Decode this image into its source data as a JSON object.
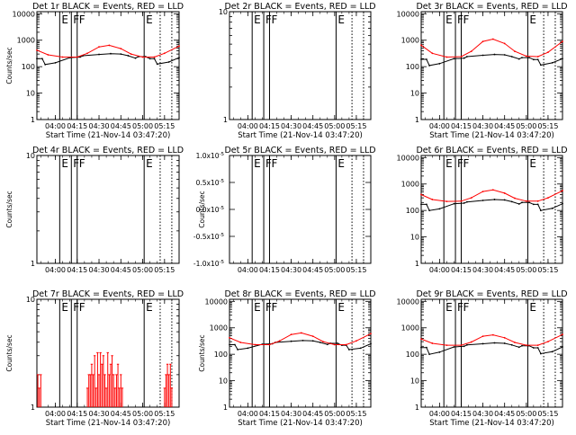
{
  "chart_data": [
    {
      "type": "line",
      "title": "Det 1r BLACK = Events, RED = LLD",
      "xlabel": "Start Time (21-Nov-14 03:47:20)",
      "ylabel": "Counts/sec",
      "xlim": [
        "03:47:20",
        "05:25:00"
      ],
      "x_tick_labels": [
        "04:00",
        "04:15",
        "04:30",
        "04:45",
        "05:00",
        "05:15"
      ],
      "ylim": [
        1,
        12000
      ],
      "yscale": "log",
      "y_tick_labels": [
        "1",
        "10",
        "100",
        "1000",
        "10000"
      ],
      "markers": [
        {
          "time": "04:03",
          "label": "E"
        },
        {
          "time": "04:11",
          "label": "F"
        },
        {
          "time": "04:15",
          "label": "F"
        },
        {
          "time": "05:01",
          "label": "E"
        }
      ],
      "series": [
        {
          "color": "#000000",
          "x": [
            "03:47:20",
            "03:51",
            "03:53",
            "04:00",
            "04:10",
            "04:17",
            "04:19",
            "04:30",
            "04:38",
            "04:45",
            "04:50",
            "04:55",
            "04:57",
            "05:02",
            "05:05",
            "05:08",
            "05:10",
            "05:18",
            "05:25"
          ],
          "values": [
            200,
            200,
            120,
            140,
            220,
            230,
            260,
            290,
            310,
            300,
            260,
            210,
            240,
            240,
            200,
            200,
            125,
            150,
            220
          ]
        },
        {
          "color": "#ff0000",
          "x": [
            "03:47:20",
            "03:55",
            "04:05",
            "04:15",
            "04:22",
            "04:30",
            "04:37",
            "04:45",
            "04:52",
            "05:00",
            "05:08",
            "05:15",
            "05:25"
          ],
          "values": [
            420,
            280,
            230,
            230,
            320,
            560,
            640,
            480,
            300,
            230,
            230,
            320,
            600
          ]
        }
      ]
    },
    {
      "type": "line",
      "title": "Det 2r BLACK = Events, RED = LLD",
      "xlabel": "Start Time (21-Nov-14 03:47:20)",
      "ylabel": "",
      "xlim": [
        "03:47:20",
        "05:25:00"
      ],
      "x_tick_labels": [
        "04:00",
        "04:15",
        "04:30",
        "04:45",
        "05:00",
        "05:15"
      ],
      "ylim": [
        1,
        10
      ],
      "yscale": "log",
      "y_tick_labels": [
        "1",
        "10"
      ],
      "markers": [
        {
          "time": "04:03",
          "label": "E"
        },
        {
          "time": "04:11",
          "label": "F"
        },
        {
          "time": "04:15",
          "label": "F"
        },
        {
          "time": "05:01",
          "label": "E"
        }
      ],
      "series": []
    },
    {
      "type": "line",
      "title": "Det 3r BLACK = Events, RED = LLD",
      "xlabel": "Start Time (21-Nov-14 03:47:20)",
      "ylabel": "",
      "xlim": [
        "03:47:20",
        "05:25:00"
      ],
      "x_tick_labels": [
        "04:00",
        "04:15",
        "04:30",
        "04:45",
        "05:00",
        "05:15"
      ],
      "ylim": [
        1,
        12000
      ],
      "yscale": "log",
      "y_tick_labels": [
        "1",
        "10",
        "100",
        "1000",
        "10000"
      ],
      "markers": [
        {
          "time": "04:03",
          "label": "E"
        },
        {
          "time": "04:11",
          "label": "F"
        },
        {
          "time": "04:15",
          "label": "F"
        },
        {
          "time": "05:01",
          "label": "E"
        }
      ],
      "series": [
        {
          "color": "#000000",
          "x": [
            "03:47:20",
            "03:51",
            "03:53",
            "04:00",
            "04:10",
            "04:17",
            "04:19",
            "04:30",
            "04:38",
            "04:45",
            "04:50",
            "04:55",
            "04:57",
            "05:02",
            "05:05",
            "05:08",
            "05:10",
            "05:18",
            "05:25"
          ],
          "values": [
            190,
            190,
            110,
            130,
            200,
            210,
            240,
            270,
            290,
            280,
            240,
            195,
            220,
            220,
            185,
            185,
            115,
            140,
            200
          ]
        },
        {
          "color": "#ff0000",
          "x": [
            "03:47:20",
            "03:55",
            "04:05",
            "04:15",
            "04:22",
            "04:30",
            "04:37",
            "04:45",
            "04:52",
            "05:00",
            "05:08",
            "05:15",
            "05:25"
          ],
          "values": [
            650,
            320,
            230,
            240,
            380,
            900,
            1100,
            750,
            380,
            250,
            240,
            350,
            900
          ]
        }
      ]
    },
    {
      "type": "line",
      "title": "Det 4r BLACK = Events, RED = LLD",
      "xlabel": "",
      "ylabel": "Counts/sec",
      "xlim": [
        "03:47:20",
        "05:25:00"
      ],
      "x_tick_labels": [
        "04:00",
        "04:15",
        "04:30",
        "04:45",
        "05:00",
        "05:15"
      ],
      "ylim": [
        1,
        10
      ],
      "yscale": "log",
      "y_tick_labels": [
        "1",
        "10"
      ],
      "markers": [
        {
          "time": "04:03",
          "label": "E"
        },
        {
          "time": "04:11",
          "label": "F"
        },
        {
          "time": "04:15",
          "label": "F"
        },
        {
          "time": "05:01",
          "label": "E"
        }
      ],
      "series": []
    },
    {
      "type": "line",
      "title": "Det 5r BLACK = Events, RED = LLD",
      "xlabel": "",
      "ylabel": "Counts/sec",
      "xlim": [
        "03:47:20",
        "05:25:00"
      ],
      "x_tick_labels": [
        "04:00",
        "04:15",
        "04:30",
        "04:45",
        "05:00",
        "05:15"
      ],
      "ylim": [
        -1,
        1
      ],
      "yscale": "linear",
      "y_tick_labels": [
        "1.0",
        "0.5",
        "0.0",
        "-0.5",
        "-1.0"
      ],
      "y_tick_exponent": "-5",
      "markers": [
        {
          "time": "04:03",
          "label": "E"
        },
        {
          "time": "04:11",
          "label": "F"
        },
        {
          "time": "04:15",
          "label": "F"
        },
        {
          "time": "05:01",
          "label": "E"
        }
      ],
      "series": []
    },
    {
      "type": "line",
      "title": "Det 6r BLACK = Events, RED = LLD",
      "xlabel": "",
      "ylabel": "",
      "xlim": [
        "03:47:20",
        "05:25:00"
      ],
      "x_tick_labels": [
        "04:00",
        "04:15",
        "04:30",
        "04:45",
        "05:00",
        "05:15"
      ],
      "ylim": [
        1,
        12000
      ],
      "yscale": "log",
      "y_tick_labels": [
        "1",
        "10",
        "100",
        "1000",
        "10000"
      ],
      "markers": [
        {
          "time": "04:03",
          "label": "E"
        },
        {
          "time": "04:11",
          "label": "F"
        },
        {
          "time": "04:15",
          "label": "F"
        },
        {
          "time": "05:01",
          "label": "E"
        }
      ],
      "series": [
        {
          "color": "#000000",
          "x": [
            "03:47:20",
            "03:51",
            "03:53",
            "04:00",
            "04:10",
            "04:17",
            "04:19",
            "04:30",
            "04:38",
            "04:45",
            "04:50",
            "04:55",
            "04:57",
            "05:02",
            "05:05",
            "05:08",
            "05:10",
            "05:18",
            "05:25"
          ],
          "values": [
            170,
            170,
            100,
            115,
            180,
            190,
            210,
            240,
            260,
            250,
            215,
            175,
            200,
            200,
            170,
            170,
            100,
            120,
            180
          ]
        },
        {
          "color": "#ff0000",
          "x": [
            "03:47:20",
            "03:55",
            "04:05",
            "04:15",
            "04:22",
            "04:30",
            "04:37",
            "04:45",
            "04:52",
            "05:00",
            "05:08",
            "05:15",
            "05:25"
          ],
          "values": [
            400,
            260,
            220,
            225,
            300,
            520,
            600,
            450,
            290,
            225,
            225,
            300,
            560
          ]
        }
      ]
    },
    {
      "type": "bar",
      "title": "Det 7r BLACK = Events, RED = LLD",
      "xlabel": "Start Time (21-Nov-14 03:47:20)",
      "ylabel": "Counts/sec",
      "xlim": [
        "03:47:20",
        "05:25:00"
      ],
      "x_tick_labels": [
        "04:00",
        "04:15",
        "04:30",
        "04:45",
        "05:00",
        "05:15"
      ],
      "ylim": [
        1,
        10
      ],
      "yscale": "log",
      "y_tick_labels": [
        "1",
        "10"
      ],
      "markers": [
        {
          "time": "04:03",
          "label": "E"
        },
        {
          "time": "04:11",
          "label": "F"
        },
        {
          "time": "04:15",
          "label": "F"
        },
        {
          "time": "05:01",
          "label": "E"
        }
      ],
      "series": [
        {
          "color": "#ff0000",
          "x": [
            "03:48",
            "03:49",
            "03:50",
            "04:22",
            "04:23",
            "04:24",
            "04:25",
            "04:26",
            "04:27",
            "04:28",
            "04:29",
            "04:30",
            "04:31",
            "04:32",
            "04:33",
            "04:34",
            "04:35",
            "04:36",
            "04:37",
            "04:38",
            "04:39",
            "04:40",
            "04:41",
            "04:42",
            "04:43",
            "04:44",
            "04:45",
            "04:46",
            "05:15",
            "05:16",
            "05:17",
            "05:18",
            "05:19",
            "05:20"
          ],
          "values": [
            2,
            1.5,
            2,
            1.5,
            2,
            2,
            2.5,
            2,
            3,
            1.5,
            3.2,
            2,
            3.2,
            2.5,
            3,
            2,
            1.5,
            3.2,
            2,
            2.5,
            3,
            2,
            1.5,
            2,
            2.5,
            1.5,
            2,
            1.5,
            1.5,
            2,
            2.5,
            2,
            2.5,
            1.5
          ]
        }
      ]
    },
    {
      "type": "line",
      "title": "Det 8r BLACK = Events, RED = LLD",
      "xlabel": "Start Time (21-Nov-14 03:47:20)",
      "ylabel": "Counts/sec",
      "xlim": [
        "03:47:20",
        "05:25:00"
      ],
      "x_tick_labels": [
        "04:00",
        "04:15",
        "04:30",
        "04:45",
        "05:00",
        "05:15"
      ],
      "ylim": [
        1,
        12000
      ],
      "yscale": "log",
      "y_tick_labels": [
        "1",
        "10",
        "100",
        "1000",
        "10000"
      ],
      "markers": [
        {
          "time": "04:03",
          "label": "E"
        },
        {
          "time": "04:11",
          "label": "F"
        },
        {
          "time": "04:15",
          "label": "F"
        },
        {
          "time": "05:01",
          "label": "E"
        }
      ],
      "series": [
        {
          "color": "#000000",
          "x": [
            "03:47:20",
            "03:51",
            "03:53",
            "04:00",
            "04:10",
            "04:17",
            "04:19",
            "04:30",
            "04:38",
            "04:45",
            "04:50",
            "04:55",
            "04:57",
            "05:02",
            "05:05",
            "05:08",
            "05:10",
            "05:18",
            "05:25"
          ],
          "values": [
            230,
            230,
            150,
            170,
            240,
            250,
            280,
            310,
            330,
            320,
            280,
            235,
            260,
            260,
            220,
            220,
            150,
            170,
            250
          ]
        },
        {
          "color": "#ff0000",
          "x": [
            "03:47:20",
            "03:55",
            "04:05",
            "04:15",
            "04:22",
            "04:30",
            "04:37",
            "04:45",
            "04:52",
            "05:00",
            "05:08",
            "05:15",
            "05:25"
          ],
          "values": [
            420,
            280,
            230,
            230,
            320,
            560,
            640,
            480,
            300,
            230,
            230,
            320,
            600
          ]
        }
      ]
    },
    {
      "type": "line",
      "title": "Det 9r BLACK = Events, RED = LLD",
      "xlabel": "Start Time (21-Nov-14 03:47:20)",
      "ylabel": "",
      "xlim": [
        "03:47:20",
        "05:25:00"
      ],
      "x_tick_labels": [
        "04:00",
        "04:15",
        "04:30",
        "04:45",
        "05:00",
        "05:15"
      ],
      "ylim": [
        1,
        12000
      ],
      "yscale": "log",
      "y_tick_labels": [
        "1",
        "10",
        "100",
        "1000",
        "10000"
      ],
      "markers": [
        {
          "time": "04:03",
          "label": "E"
        },
        {
          "time": "04:11",
          "label": "F"
        },
        {
          "time": "04:15",
          "label": "F"
        },
        {
          "time": "05:01",
          "label": "E"
        }
      ],
      "series": [
        {
          "color": "#000000",
          "x": [
            "03:47:20",
            "03:51",
            "03:53",
            "04:00",
            "04:10",
            "04:17",
            "04:19",
            "04:30",
            "04:38",
            "04:45",
            "04:50",
            "04:55",
            "04:57",
            "05:02",
            "05:05",
            "05:08",
            "05:10",
            "05:18",
            "05:25"
          ],
          "values": [
            180,
            180,
            100,
            120,
            190,
            200,
            225,
            250,
            270,
            260,
            225,
            185,
            210,
            210,
            175,
            175,
            105,
            125,
            190
          ]
        },
        {
          "color": "#ff0000",
          "x": [
            "03:47:20",
            "03:55",
            "04:05",
            "04:15",
            "04:22",
            "04:30",
            "04:37",
            "04:45",
            "04:52",
            "05:00",
            "05:08",
            "05:15",
            "05:25"
          ],
          "values": [
            380,
            260,
            220,
            220,
            290,
            480,
            540,
            420,
            280,
            220,
            220,
            300,
            560
          ]
        }
      ]
    }
  ]
}
